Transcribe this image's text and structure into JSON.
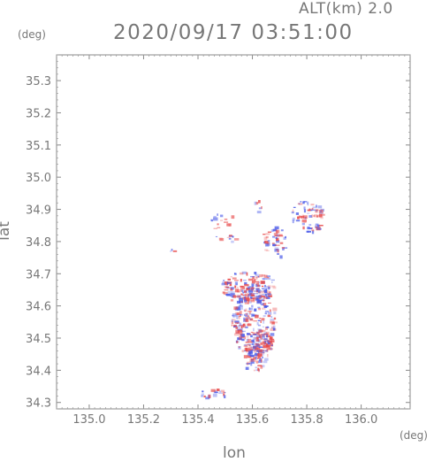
{
  "header": {
    "altitude_label": "ALT(km) 2.0",
    "datetime": "2020/09/17 03:51:00"
  },
  "chart_data": {
    "type": "heatmap",
    "title": "2020/09/17 03:51:00",
    "subtitle": "ALT(km) 2.0",
    "xlabel": "lon",
    "ylabel": "lat",
    "x_unit": "(deg)",
    "y_unit": "(deg)",
    "xlim": [
      134.88,
      136.18
    ],
    "ylim": [
      34.28,
      35.38
    ],
    "xticks": [
      "135.0",
      "135.2",
      "135.4",
      "135.6",
      "135.8",
      "136.0"
    ],
    "yticks": [
      "34.3",
      "34.4",
      "34.5",
      "34.6",
      "34.7",
      "34.8",
      "34.9",
      "35.0",
      "35.1",
      "35.2",
      "35.3"
    ],
    "grid": false,
    "colors": {
      "positive": "#e84a4a",
      "negative": "#4a5ae8",
      "axis": "#888888"
    },
    "echo_regions": [
      {
        "lon": 135.6,
        "lat": 34.56,
        "rx": 0.08,
        "ry": 0.12,
        "density": 260
      },
      {
        "lon": 135.58,
        "lat": 34.66,
        "rx": 0.1,
        "ry": 0.05,
        "density": 150
      },
      {
        "lon": 135.62,
        "lat": 34.48,
        "rx": 0.05,
        "ry": 0.05,
        "density": 90
      },
      {
        "lon": 135.6,
        "lat": 34.43,
        "rx": 0.04,
        "ry": 0.03,
        "density": 30
      },
      {
        "lon": 135.8,
        "lat": 34.88,
        "rx": 0.06,
        "ry": 0.05,
        "density": 70
      },
      {
        "lon": 135.68,
        "lat": 34.8,
        "rx": 0.05,
        "ry": 0.05,
        "density": 45
      },
      {
        "lon": 135.5,
        "lat": 34.85,
        "rx": 0.06,
        "ry": 0.06,
        "density": 25
      },
      {
        "lon": 135.45,
        "lat": 34.33,
        "rx": 0.05,
        "ry": 0.015,
        "density": 20
      },
      {
        "lon": 135.3,
        "lat": 34.77,
        "rx": 0.01,
        "ry": 0.01,
        "density": 3
      },
      {
        "lon": 135.62,
        "lat": 34.91,
        "rx": 0.02,
        "ry": 0.02,
        "density": 6
      }
    ]
  }
}
